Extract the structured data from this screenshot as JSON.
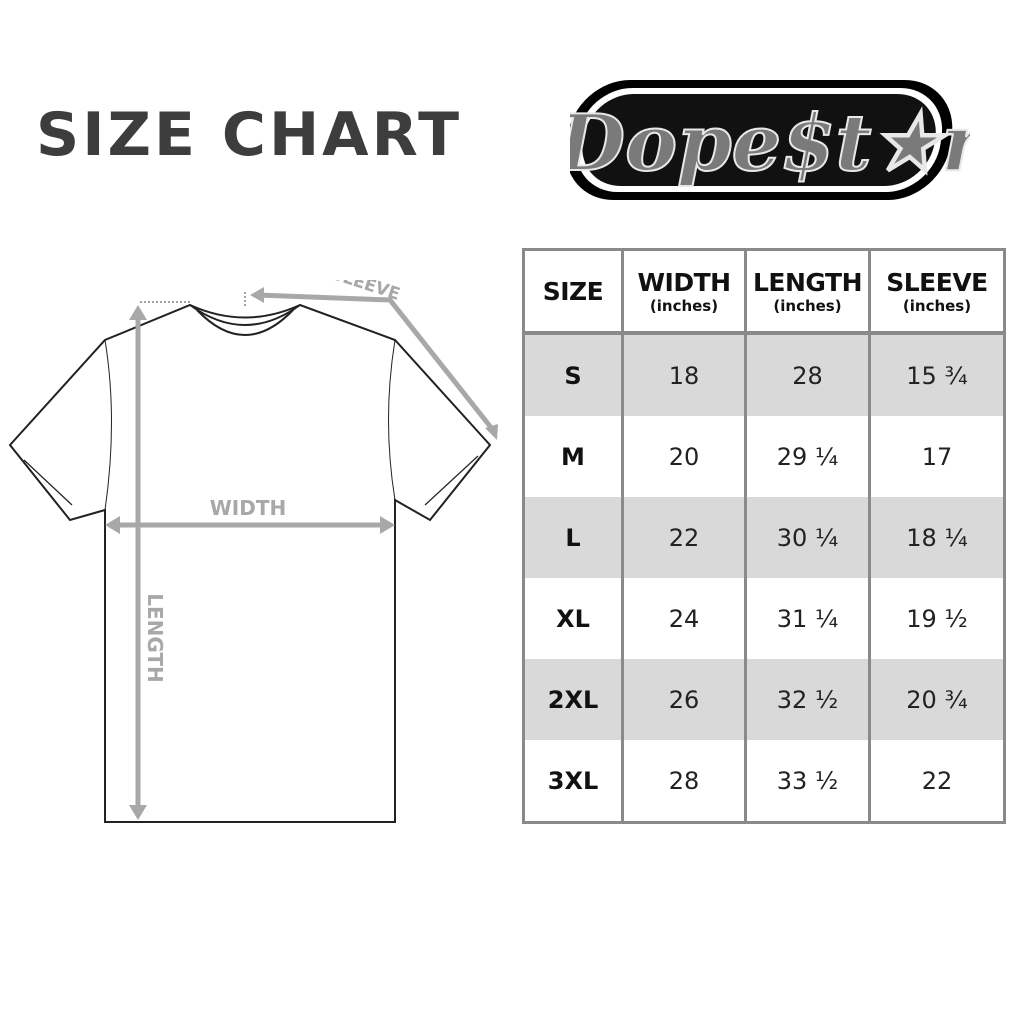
{
  "title": "SIZE CHART",
  "logo": {
    "text": "Dope$t★r"
  },
  "diagram": {
    "sleeve_label": "SLEEVE",
    "width_label": "WIDTH",
    "length_label": "LENGTH"
  },
  "colors": {
    "row_shade": "#d9d9d9",
    "border": "#8a8a8a",
    "arrow": "#a8a8a8",
    "title": "#3d3d3d"
  },
  "table": {
    "headers": [
      {
        "label": "SIZE",
        "unit": ""
      },
      {
        "label": "WIDTH",
        "unit": "(inches)"
      },
      {
        "label": "LENGTH",
        "unit": "(inches)"
      },
      {
        "label": "SLEEVE",
        "unit": "(inches)"
      }
    ],
    "rows": [
      [
        "S",
        "18",
        "28",
        "15 ¾"
      ],
      [
        "M",
        "20",
        "29 ¼",
        "17"
      ],
      [
        "L",
        "22",
        "30 ¼",
        "18 ¼"
      ],
      [
        "XL",
        "24",
        "31 ¼",
        "19 ½"
      ],
      [
        "2XL",
        "26",
        "32 ½",
        "20 ¾"
      ],
      [
        "3XL",
        "28",
        "33 ½",
        "22"
      ]
    ]
  }
}
